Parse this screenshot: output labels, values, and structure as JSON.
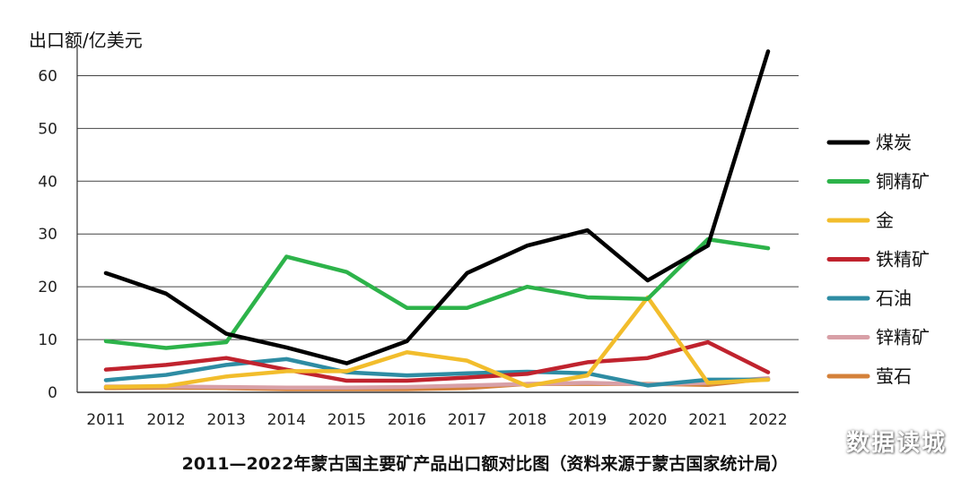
{
  "chart_data": {
    "type": "line",
    "ylabel": "出口额/亿美元",
    "xlabel": "",
    "title": "2011—2022年蒙古国主要矿产品出口额对比图（资料来源于蒙古国家统计局）",
    "ylim": [
      0,
      65
    ],
    "yticks": [
      0,
      10,
      20,
      30,
      40,
      50,
      60
    ],
    "categories": [
      "2011",
      "2012",
      "2013",
      "2014",
      "2015",
      "2016",
      "2017",
      "2018",
      "2019",
      "2020",
      "2021",
      "2022"
    ],
    "grid": "horizontal",
    "legend_position": "right",
    "series": [
      {
        "name": "煤炭",
        "color": "#000000",
        "values": [
          22.6,
          18.7,
          11.1,
          8.5,
          5.5,
          9.7,
          22.6,
          27.8,
          30.7,
          21.2,
          27.8,
          64.6
        ]
      },
      {
        "name": "铜精矿",
        "color": "#2db34a",
        "values": [
          9.7,
          8.4,
          9.5,
          25.7,
          22.8,
          16.0,
          16.0,
          20.0,
          18.0,
          17.7,
          29.0,
          27.3
        ]
      },
      {
        "name": "金",
        "color": "#f2bd2c",
        "values": [
          1.0,
          1.2,
          3.0,
          4.0,
          4.0,
          7.6,
          6.0,
          1.2,
          3.2,
          18.0,
          1.8,
          2.4
        ]
      },
      {
        "name": "铁精矿",
        "color": "#c0232e",
        "values": [
          4.3,
          5.2,
          6.5,
          4.3,
          2.2,
          2.2,
          2.8,
          3.5,
          5.7,
          6.5,
          9.5,
          3.8
        ]
      },
      {
        "name": "石油",
        "color": "#2e8ca3",
        "values": [
          2.3,
          3.3,
          5.2,
          6.3,
          3.8,
          3.2,
          3.6,
          3.9,
          3.6,
          1.3,
          2.4,
          2.4
        ]
      },
      {
        "name": "锌精矿",
        "color": "#d8a0a7",
        "values": [
          1.1,
          1.1,
          1.0,
          0.9,
          0.9,
          1.0,
          1.3,
          1.6,
          1.8,
          1.5,
          1.8,
          2.7
        ]
      },
      {
        "name": "萤石",
        "color": "#d4813a",
        "values": [
          0.8,
          0.9,
          0.8,
          0.6,
          0.6,
          0.6,
          0.8,
          1.6,
          1.6,
          1.6,
          1.4,
          2.6
        ]
      }
    ]
  },
  "watermark": "数据读城"
}
